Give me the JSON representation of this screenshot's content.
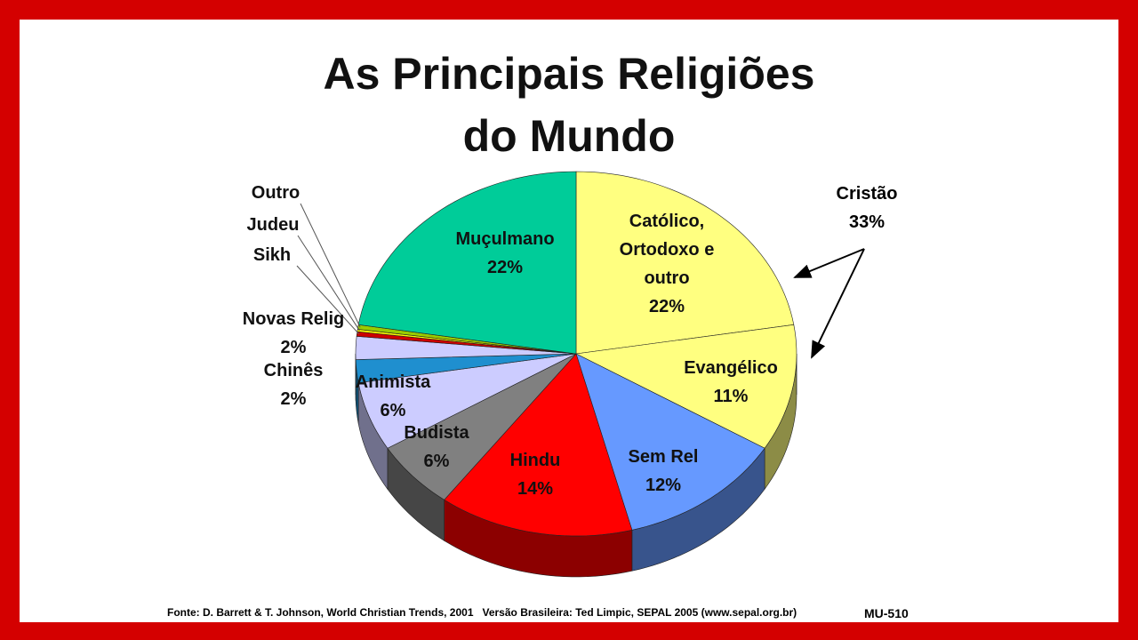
{
  "chart_data": {
    "type": "pie",
    "title": "As Principais Religiões do Mundo",
    "categories": [
      "Católico, Ortodoxo e outro",
      "Evangélico",
      "Sem Rel",
      "Hindu",
      "Budista",
      "Animista",
      "Chinês",
      "Novas Relig",
      "Sikh",
      "Judeu",
      "Outro",
      "Muçulmano"
    ],
    "values": [
      22,
      11,
      12,
      14,
      6,
      6,
      2,
      2,
      0.4,
      0.2,
      0.4,
      22
    ],
    "value_labels": [
      "22%",
      "11%",
      "12%",
      "14%",
      "6%",
      "6%",
      "2%",
      "2%",
      null,
      null,
      null,
      "22%"
    ],
    "colors": [
      "#ffff80",
      "#ffff80",
      "#6699ff",
      "#ff0000",
      "#808080",
      "#ccccff",
      "#1f8fcf",
      "#ccccff",
      "#cc0000",
      "#ffff00",
      "#99cc00",
      "#00cc99"
    ],
    "annotation": "Cristão 33%",
    "source": "Fonte: D. Barrett & T. Johnson, World Christian Trends, 2001   Versão Brasileira: Ted Limpic, SEPAL 2005 (www.sepal.org.br)",
    "code": "MU-510"
  }
}
